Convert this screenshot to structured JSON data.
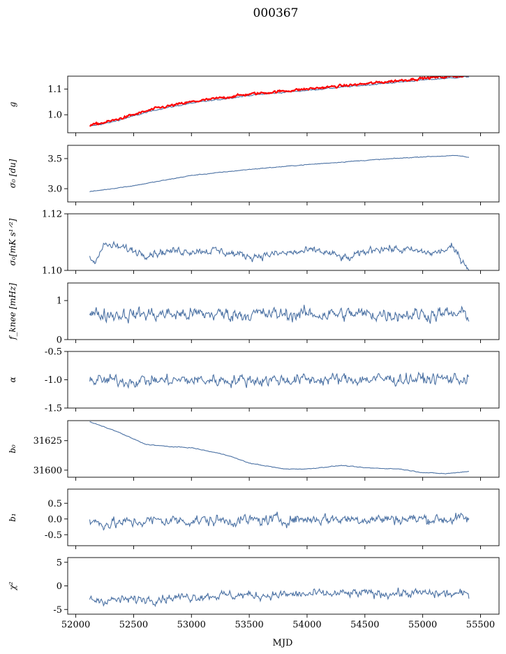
{
  "chart_data": {
    "type": "line",
    "title": "000367",
    "xlabel": "MJD",
    "xlim": [
      51930,
      55660
    ],
    "x_ticks": [
      "52000",
      "52500",
      "53000",
      "53500",
      "54000",
      "54500",
      "55000",
      "55500"
    ],
    "x_tick_values": [
      52000,
      52500,
      53000,
      53500,
      54000,
      54500,
      55000,
      55500
    ],
    "x_range": [
      52120,
      55400
    ],
    "line_color": "#4c72a4",
    "panels": [
      {
        "id": "g",
        "ylabel": "g",
        "ylim": [
          0.93,
          1.15
        ],
        "y_ticks": [
          "1.0",
          "1.1"
        ],
        "y_tick_values": [
          1.0,
          1.1
        ],
        "series": [
          {
            "color": "#4c72a4",
            "x": [
              52120,
              52300,
              52700,
              53000,
              53500,
              54000,
              54500,
              55000,
              55400
            ],
            "y": [
              0.955,
              0.97,
              1.02,
              1.045,
              1.075,
              1.095,
              1.115,
              1.135,
              1.148
            ],
            "noise": 0.002
          },
          {
            "color": "#ff0000",
            "x": [
              52120,
              52300,
              52700,
              53000,
              53500,
              54000,
              54500,
              55000,
              55400
            ],
            "y": [
              0.958,
              0.975,
              1.025,
              1.05,
              1.08,
              1.1,
              1.12,
              1.142,
              1.153
            ],
            "noise": 0.004
          }
        ]
      },
      {
        "id": "sigma0-du",
        "ylabel": "σ₀ [du]",
        "ylim": [
          2.78,
          3.72
        ],
        "y_ticks": [
          "3.0",
          "3.5"
        ],
        "y_tick_values": [
          3.0,
          3.5
        ],
        "series": [
          {
            "color": "#4c72a4",
            "x": [
              52120,
              52500,
              53000,
              53500,
              54000,
              54500,
              55000,
              55300,
              55400
            ],
            "y": [
              2.95,
              3.05,
              3.22,
              3.32,
              3.4,
              3.47,
              3.53,
              3.55,
              3.52
            ],
            "noise": 0.005
          }
        ]
      },
      {
        "id": "sigma0-mk",
        "ylabel": "σ₀[mK s¹ᐟ²]",
        "ylim": [
          1.1,
          1.12
        ],
        "y_ticks": [
          "1.10",
          "1.12"
        ],
        "y_tick_values": [
          1.1,
          1.12
        ],
        "series": [
          {
            "color": "#4c72a4",
            "x": [
              52120,
              52150,
              52250,
              52400,
              52600,
              52900,
              53200,
              53500,
              53800,
              54100,
              54350,
              54600,
              54900,
              55100,
              55250,
              55400
            ],
            "y": [
              1.105,
              1.103,
              1.109,
              1.108,
              1.106,
              1.107,
              1.107,
              1.105,
              1.106,
              1.107,
              1.104,
              1.108,
              1.107,
              1.106,
              1.108,
              1.101
            ],
            "noise": 0.0012
          }
        ]
      },
      {
        "id": "fknee",
        "ylabel": "f_knee [mHz]",
        "ylim": [
          0,
          1.45
        ],
        "y_ticks": [
          "0",
          "1"
        ],
        "y_tick_values": [
          0,
          1
        ],
        "series": [
          {
            "color": "#4c72a4",
            "x": [
              52120,
              55400
            ],
            "y": [
              0.65,
              0.65
            ],
            "noise": 0.15
          }
        ]
      },
      {
        "id": "alpha",
        "ylabel": "α",
        "ylim": [
          -1.5,
          -0.5
        ],
        "y_ticks": [
          "-1.5",
          "-1.0",
          "-0.5"
        ],
        "y_tick_values": [
          -1.5,
          -1.0,
          -0.5
        ],
        "series": [
          {
            "color": "#4c72a4",
            "x": [
              52120,
              55400
            ],
            "y": [
              -1.02,
              -0.98
            ],
            "noise": 0.09
          }
        ]
      },
      {
        "id": "b0",
        "ylabel": "b₀",
        "ylim": [
          31594,
          31642
        ],
        "y_ticks": [
          "31600",
          "31625"
        ],
        "y_tick_values": [
          31600,
          31625
        ],
        "series": [
          {
            "color": "#4c72a4",
            "x": [
              52120,
              52350,
              52600,
              52800,
              53000,
              53300,
              53500,
              53800,
              54000,
              54300,
              54500,
              54800,
              55000,
              55200,
              55400
            ],
            "y": [
              31641,
              31633,
              31622,
              31620,
              31619,
              31613,
              31606,
              31601,
              31601,
              31604,
              31602,
              31601,
              31598,
              31597,
              31599
            ],
            "noise": 0.25
          }
        ]
      },
      {
        "id": "b1",
        "ylabel": "b₁",
        "ylim": [
          -0.85,
          0.95
        ],
        "y_ticks": [
          "-0.5",
          "0.0",
          "0.5"
        ],
        "y_tick_values": [
          -0.5,
          0.0,
          0.5
        ],
        "series": [
          {
            "color": "#4c72a4",
            "x": [
              52120,
              52300,
              52700,
              53100,
              53500,
              54000,
              54500,
              55000,
              55400
            ],
            "y": [
              -0.1,
              -0.15,
              -0.05,
              -0.05,
              -0.05,
              0.0,
              0.0,
              0.0,
              0.0
            ],
            "noise": 0.15
          }
        ]
      },
      {
        "id": "chi2",
        "ylabel": "χ²",
        "ylim": [
          -6,
          6
        ],
        "y_ticks": [
          "-5",
          "0",
          "5"
        ],
        "y_tick_values": [
          -5,
          0,
          5
        ],
        "series": [
          {
            "color": "#4c72a4",
            "x": [
              52120,
              52400,
              52800,
              53200,
              53600,
              54000,
              54500,
              55000,
              55400
            ],
            "y": [
              -3,
              -3,
              -2.5,
              -2,
              -2,
              -1.8,
              -1.6,
              -1.6,
              -1.8
            ],
            "noise": 0.8
          }
        ]
      }
    ]
  }
}
